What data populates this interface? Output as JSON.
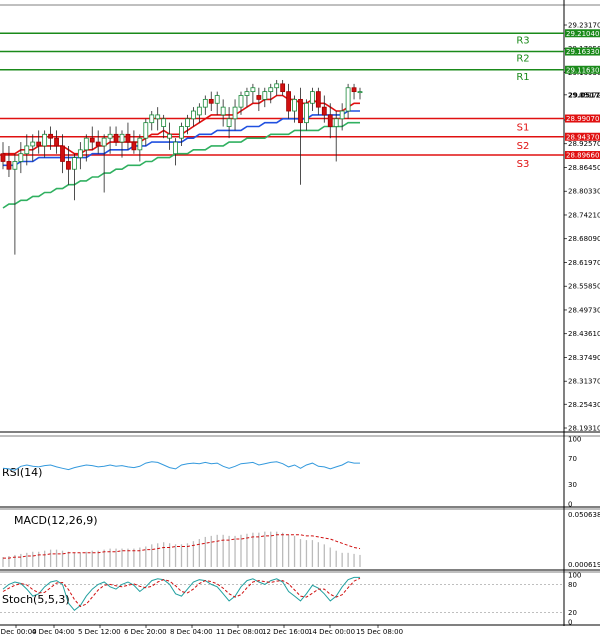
{
  "chart_data": {
    "type": "candlestick",
    "symbol_price_axis": {
      "ticks": [
        "29.23170",
        "29.17050",
        "29.10930",
        "29.05172",
        "28.98690",
        "28.92570",
        "28.86450",
        "28.80330",
        "28.74210",
        "28.68090",
        "28.61970",
        "28.55850",
        "28.49730",
        "28.43610",
        "28.37490",
        "28.31370",
        "28.25430",
        "28.19310"
      ],
      "range": [
        28.1931,
        29.2317
      ]
    },
    "x_ticks": [
      "3 Dec 00:00",
      "4 Dec 04:00",
      "5 Dec 12:00",
      "6 Dec 20:00",
      "8 Dec 04:00",
      "11 Dec 08:00",
      "12 Dec 16:00",
      "14 Dec 00:00",
      "15 Dec 08:00"
    ],
    "current_price": "29.05172",
    "levels": [
      {
        "name": "R3",
        "value": 29.2104,
        "tag": "29.21040",
        "color": "#1a8a1a"
      },
      {
        "name": "R2",
        "value": 29.1633,
        "tag": "29.16330",
        "color": "#1a8a1a"
      },
      {
        "name": "R1",
        "value": 29.1163,
        "tag": "29.11630",
        "color": "#1a8a1a"
      },
      {
        "name": "S1",
        "value": 28.9907,
        "tag": "28.99070",
        "color": "#e01010"
      },
      {
        "name": "S2",
        "value": 28.9437,
        "tag": "28.94370",
        "color": "#e01010"
      },
      {
        "name": "S3",
        "value": 28.8966,
        "tag": "28.89660",
        "color": "#e01010"
      }
    ],
    "candles": [
      [
        28.9,
        28.93,
        28.86,
        28.88
      ],
      [
        28.88,
        28.92,
        28.84,
        28.86
      ],
      [
        28.86,
        28.9,
        28.64,
        28.88
      ],
      [
        28.88,
        28.93,
        28.85,
        28.9
      ],
      [
        28.9,
        28.95,
        28.87,
        28.92
      ],
      [
        28.92,
        28.95,
        28.88,
        28.93
      ],
      [
        28.93,
        28.96,
        28.9,
        28.92
      ],
      [
        28.92,
        28.96,
        28.89,
        28.95
      ],
      [
        28.95,
        28.97,
        28.91,
        28.94
      ],
      [
        28.94,
        28.96,
        28.9,
        28.92
      ],
      [
        28.92,
        28.95,
        28.85,
        28.88
      ],
      [
        28.88,
        28.92,
        28.82,
        28.86
      ],
      [
        28.86,
        28.9,
        28.78,
        28.89
      ],
      [
        28.89,
        28.93,
        28.86,
        28.91
      ],
      [
        28.91,
        28.95,
        28.88,
        28.94
      ],
      [
        28.94,
        28.97,
        28.91,
        28.93
      ],
      [
        28.93,
        28.96,
        28.9,
        28.92
      ],
      [
        28.92,
        28.95,
        28.8,
        28.94
      ],
      [
        28.94,
        28.97,
        28.9,
        28.95
      ],
      [
        28.95,
        28.97,
        28.92,
        28.93
      ],
      [
        28.93,
        28.96,
        28.89,
        28.95
      ],
      [
        28.95,
        28.98,
        28.91,
        28.93
      ],
      [
        28.93,
        28.96,
        28.9,
        28.91
      ],
      [
        28.91,
        28.95,
        28.88,
        28.94
      ],
      [
        28.94,
        28.99,
        28.92,
        28.98
      ],
      [
        28.98,
        29.01,
        28.96,
        29.0
      ],
      [
        28.99,
        29.02,
        28.96,
        29.0
      ],
      [
        28.97,
        29.0,
        28.94,
        28.99
      ],
      [
        28.94,
        28.98,
        28.91,
        28.95
      ],
      [
        28.9,
        28.94,
        28.87,
        28.93
      ],
      [
        28.94,
        28.98,
        28.92,
        28.97
      ],
      [
        28.97,
        29.0,
        28.95,
        28.99
      ],
      [
        28.99,
        29.02,
        28.97,
        29.01
      ],
      [
        29.0,
        29.03,
        28.98,
        29.02
      ],
      [
        29.02,
        29.05,
        29.0,
        29.04
      ],
      [
        29.04,
        29.06,
        29.01,
        29.03
      ],
      [
        29.03,
        29.06,
        29.0,
        29.05
      ],
      [
        29.0,
        29.04,
        28.97,
        29.02
      ],
      [
        28.97,
        29.02,
        28.94,
        28.99
      ],
      [
        28.99,
        29.04,
        28.96,
        29.02
      ],
      [
        29.02,
        29.06,
        29.0,
        29.05
      ],
      [
        29.05,
        29.07,
        29.02,
        29.06
      ],
      [
        29.06,
        29.08,
        29.03,
        29.07
      ],
      [
        29.05,
        29.07,
        29.01,
        29.04
      ],
      [
        29.04,
        29.07,
        29.02,
        29.06
      ],
      [
        29.06,
        29.08,
        29.03,
        29.07
      ],
      [
        29.07,
        29.09,
        29.05,
        29.08
      ],
      [
        29.08,
        29.09,
        29.05,
        29.06
      ],
      [
        29.06,
        29.08,
        28.99,
        29.01
      ],
      [
        29.01,
        29.05,
        28.98,
        29.04
      ],
      [
        29.04,
        29.07,
        28.82,
        28.98
      ],
      [
        28.98,
        29.04,
        28.96,
        29.03
      ],
      [
        29.03,
        29.07,
        29.01,
        29.06
      ],
      [
        29.06,
        29.07,
        29.0,
        29.02
      ],
      [
        29.02,
        29.05,
        28.98,
        29.0
      ],
      [
        29.0,
        29.03,
        28.94,
        28.97
      ],
      [
        28.97,
        29.01,
        28.88,
        28.99
      ],
      [
        28.99,
        29.03,
        28.96,
        29.01
      ],
      [
        29.01,
        29.08,
        28.99,
        29.07
      ],
      [
        29.07,
        29.08,
        29.04,
        29.06
      ],
      [
        29.06,
        29.07,
        29.04,
        29.06
      ]
    ],
    "ma_lines": [
      {
        "name": "",
        "color": "#e01010",
        "values": [
          28.9,
          28.9,
          28.9,
          28.91,
          28.91,
          28.91,
          28.92,
          28.92,
          28.92,
          28.92,
          28.92,
          28.91,
          28.9,
          28.9,
          28.91,
          28.91,
          28.92,
          28.92,
          28.93,
          28.93,
          28.93,
          28.93,
          28.93,
          28.93,
          28.94,
          28.95,
          28.95,
          28.96,
          28.95,
          28.95,
          28.95,
          28.96,
          28.97,
          28.98,
          28.99,
          29.0,
          29.0,
          29.0,
          29.0,
          29.0,
          29.01,
          29.02,
          29.03,
          29.03,
          29.04,
          29.04,
          29.05,
          29.05,
          29.04,
          29.04,
          29.03,
          29.03,
          29.04,
          29.03,
          29.03,
          29.02,
          29.01,
          29.01,
          29.02,
          29.03,
          29.03
        ]
      },
      {
        "name": "",
        "color": "#2050e0",
        "values": [
          28.87,
          28.87,
          28.87,
          28.88,
          28.88,
          28.88,
          28.89,
          28.89,
          28.89,
          28.89,
          28.89,
          28.89,
          28.89,
          28.89,
          28.89,
          28.9,
          28.9,
          28.9,
          28.91,
          28.91,
          28.91,
          28.91,
          28.92,
          28.92,
          28.92,
          28.93,
          28.93,
          28.93,
          28.93,
          28.93,
          28.93,
          28.94,
          28.94,
          28.95,
          28.95,
          28.95,
          28.96,
          28.96,
          28.96,
          28.96,
          28.96,
          28.97,
          28.97,
          28.97,
          28.98,
          28.98,
          28.98,
          28.99,
          28.99,
          28.99,
          28.99,
          28.99,
          29.0,
          29.0,
          29.0,
          29.0,
          29.0,
          29.0,
          29.01,
          29.01,
          29.01
        ]
      },
      {
        "name": "",
        "color": "#30b060",
        "values": [
          28.76,
          28.77,
          28.77,
          28.78,
          28.78,
          28.79,
          28.79,
          28.8,
          28.8,
          28.81,
          28.81,
          28.82,
          28.82,
          28.83,
          28.83,
          28.84,
          28.84,
          28.85,
          28.85,
          28.86,
          28.86,
          28.87,
          28.87,
          28.87,
          28.88,
          28.88,
          28.89,
          28.89,
          28.89,
          28.9,
          28.9,
          28.9,
          28.91,
          28.91,
          28.91,
          28.92,
          28.92,
          28.92,
          28.93,
          28.93,
          28.93,
          28.94,
          28.94,
          28.94,
          28.94,
          28.95,
          28.95,
          28.95,
          28.95,
          28.96,
          28.96,
          28.96,
          28.96,
          28.96,
          28.97,
          28.97,
          28.97,
          28.97,
          28.98,
          28.98,
          28.98
        ]
      }
    ],
    "rsi": {
      "label": "RSI(14)",
      "ticks": [
        "100",
        "70",
        "30",
        "0"
      ],
      "range": [
        0,
        100
      ],
      "values": [
        55,
        54,
        52,
        58,
        60,
        58,
        57,
        59,
        60,
        57,
        55,
        53,
        56,
        58,
        60,
        59,
        57,
        58,
        60,
        58,
        59,
        57,
        56,
        58,
        63,
        65,
        64,
        60,
        56,
        54,
        60,
        62,
        63,
        62,
        64,
        62,
        63,
        58,
        55,
        58,
        62,
        63,
        64,
        60,
        62,
        64,
        65,
        62,
        57,
        60,
        55,
        60,
        63,
        58,
        57,
        54,
        57,
        60,
        65,
        63,
        63
      ]
    },
    "macd": {
      "label": "MACD(12,26,9)",
      "ticks": [
        "0.050638",
        "0.000619"
      ],
      "histogram": [
        0.01,
        0.011,
        0.012,
        0.013,
        0.014,
        0.015,
        0.015,
        0.016,
        0.017,
        0.017,
        0.016,
        0.015,
        0.014,
        0.014,
        0.015,
        0.016,
        0.016,
        0.017,
        0.018,
        0.018,
        0.018,
        0.018,
        0.018,
        0.019,
        0.02,
        0.022,
        0.023,
        0.024,
        0.023,
        0.022,
        0.022,
        0.023,
        0.025,
        0.027,
        0.029,
        0.03,
        0.031,
        0.031,
        0.03,
        0.03,
        0.031,
        0.032,
        0.033,
        0.033,
        0.034,
        0.034,
        0.034,
        0.033,
        0.031,
        0.03,
        0.027,
        0.026,
        0.026,
        0.024,
        0.022,
        0.019,
        0.016,
        0.014,
        0.014,
        0.013,
        0.012
      ],
      "signal": [
        0.009,
        0.009,
        0.01,
        0.01,
        0.011,
        0.011,
        0.012,
        0.012,
        0.013,
        0.013,
        0.013,
        0.014,
        0.014,
        0.014,
        0.014,
        0.014,
        0.014,
        0.015,
        0.015,
        0.015,
        0.016,
        0.016,
        0.016,
        0.016,
        0.017,
        0.017,
        0.018,
        0.019,
        0.019,
        0.02,
        0.02,
        0.02,
        0.021,
        0.022,
        0.023,
        0.024,
        0.025,
        0.026,
        0.026,
        0.027,
        0.027,
        0.028,
        0.029,
        0.029,
        0.03,
        0.03,
        0.031,
        0.031,
        0.031,
        0.031,
        0.031,
        0.03,
        0.03,
        0.029,
        0.028,
        0.027,
        0.025,
        0.023,
        0.021,
        0.019,
        0.018
      ],
      "range": [
        0.000619,
        0.050638
      ]
    },
    "stoch": {
      "label": "Stoch(5,5,3)",
      "ticks": [
        "100",
        "80",
        "20",
        "0"
      ],
      "range": [
        0,
        100
      ],
      "k": [
        70,
        80,
        85,
        82,
        70,
        55,
        60,
        75,
        85,
        88,
        80,
        40,
        25,
        35,
        55,
        70,
        80,
        85,
        75,
        70,
        80,
        85,
        78,
        65,
        75,
        88,
        92,
        90,
        80,
        60,
        55,
        70,
        85,
        90,
        88,
        80,
        75,
        60,
        45,
        55,
        75,
        88,
        92,
        85,
        80,
        88,
        92,
        85,
        65,
        55,
        45,
        60,
        78,
        72,
        60,
        45,
        55,
        75,
        90,
        95,
        95
      ],
      "d": [
        65,
        72,
        78,
        82,
        79,
        69,
        62,
        63,
        73,
        83,
        84,
        69,
        48,
        33,
        38,
        53,
        68,
        78,
        80,
        77,
        75,
        78,
        81,
        76,
        73,
        76,
        85,
        90,
        87,
        77,
        65,
        62,
        70,
        82,
        88,
        86,
        81,
        72,
        60,
        53,
        58,
        73,
        85,
        88,
        86,
        84,
        87,
        88,
        81,
        68,
        55,
        53,
        61,
        70,
        70,
        59,
        53,
        58,
        73,
        87,
        93
      ]
    }
  }
}
